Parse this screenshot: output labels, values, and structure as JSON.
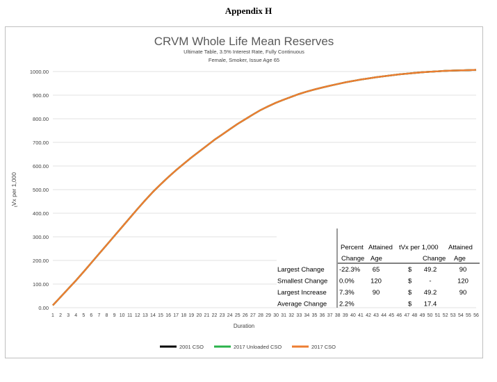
{
  "page_heading": "Appendix H",
  "chart_data": {
    "type": "line",
    "title": "CRVM Whole Life Mean Reserves",
    "subtitle_lines": [
      "Ultimate Table, 3.5% Interest Rate, Fully Continuous",
      "Female, Smoker, Issue Age 65"
    ],
    "xlabel": "Duration",
    "ylabel_prefix": "t",
    "ylabel_main": "Vx per 1,000",
    "ylim": [
      0,
      1000
    ],
    "yticks": [
      "0.00",
      "100.00",
      "200.00",
      "300.00",
      "400.00",
      "500.00",
      "600.00",
      "700.00",
      "800.00",
      "900.00",
      "1000.00"
    ],
    "x": [
      1,
      2,
      3,
      4,
      5,
      6,
      7,
      8,
      9,
      10,
      11,
      12,
      13,
      14,
      15,
      16,
      17,
      18,
      19,
      20,
      21,
      22,
      23,
      24,
      25,
      26,
      27,
      28,
      29,
      30,
      31,
      32,
      33,
      34,
      35,
      36,
      37,
      38,
      39,
      40,
      41,
      42,
      43,
      44,
      45,
      46,
      47,
      48,
      49,
      50,
      51,
      52,
      53,
      54,
      55,
      56
    ],
    "grid": true,
    "legend_position": "bottom",
    "series": [
      {
        "name": "2001 CSO",
        "color": "#000000",
        "values": [
          10,
          45,
          80,
          115,
          152,
          190,
          228,
          266,
          304,
          342,
          380,
          418,
          455,
          490,
          522,
          553,
          582,
          609,
          636,
          661,
          686,
          711,
          733,
          756,
          778,
          798,
          818,
          837,
          853,
          868,
          881,
          893,
          905,
          915,
          924,
          932,
          940,
          947,
          954,
          960,
          966,
          971,
          976,
          980,
          984,
          988,
          991,
          994,
          997,
          999,
          1001,
          1003,
          1004,
          1005,
          1006,
          1007
        ]
      },
      {
        "name": "2017 Unloaded CSO",
        "color": "#2ab24a",
        "values": [
          10,
          45,
          80,
          115,
          152,
          190,
          228,
          266,
          304,
          342,
          380,
          418,
          455,
          490,
          522,
          553,
          582,
          609,
          636,
          661,
          686,
          711,
          733,
          756,
          778,
          798,
          818,
          837,
          853,
          868,
          881,
          893,
          905,
          915,
          924,
          932,
          940,
          947,
          954,
          960,
          966,
          971,
          976,
          980,
          984,
          988,
          991,
          994,
          997,
          999,
          1001,
          1003,
          1004,
          1005,
          1006,
          1007
        ]
      },
      {
        "name": "2017 CSO",
        "color": "#ed7d31",
        "values": [
          10,
          45,
          80,
          115,
          152,
          190,
          228,
          266,
          304,
          342,
          380,
          418,
          455,
          490,
          522,
          553,
          582,
          609,
          636,
          661,
          686,
          711,
          733,
          756,
          778,
          798,
          818,
          837,
          853,
          868,
          881,
          893,
          905,
          915,
          924,
          932,
          940,
          947,
          954,
          960,
          966,
          971,
          976,
          980,
          984,
          988,
          991,
          994,
          997,
          999,
          1001,
          1003,
          1004,
          1005,
          1006,
          1007
        ]
      }
    ],
    "summary_table": {
      "header_top": [
        "Percent",
        "Attained",
        "tVx per 1,000",
        "Attained"
      ],
      "header_bottom": [
        "Change",
        "Age",
        "Change",
        "Age"
      ],
      "rows": [
        {
          "label": "Largest Change",
          "pct": "-22.3%",
          "age1": "65",
          "cur": "$",
          "chg": "49.2",
          "age2": "90"
        },
        {
          "label": "Smallest Change",
          "pct": "0.0%",
          "age1": "120",
          "cur": "$",
          "chg": "-",
          "age2": "120"
        },
        {
          "label": "Largest Increase",
          "pct": "7.3%",
          "age1": "90",
          "cur": "$",
          "chg": "49.2",
          "age2": "90"
        },
        {
          "label": "Average Change",
          "pct": "2.2%",
          "age1": "",
          "cur": "$",
          "chg": "17.4",
          "age2": ""
        }
      ]
    }
  }
}
